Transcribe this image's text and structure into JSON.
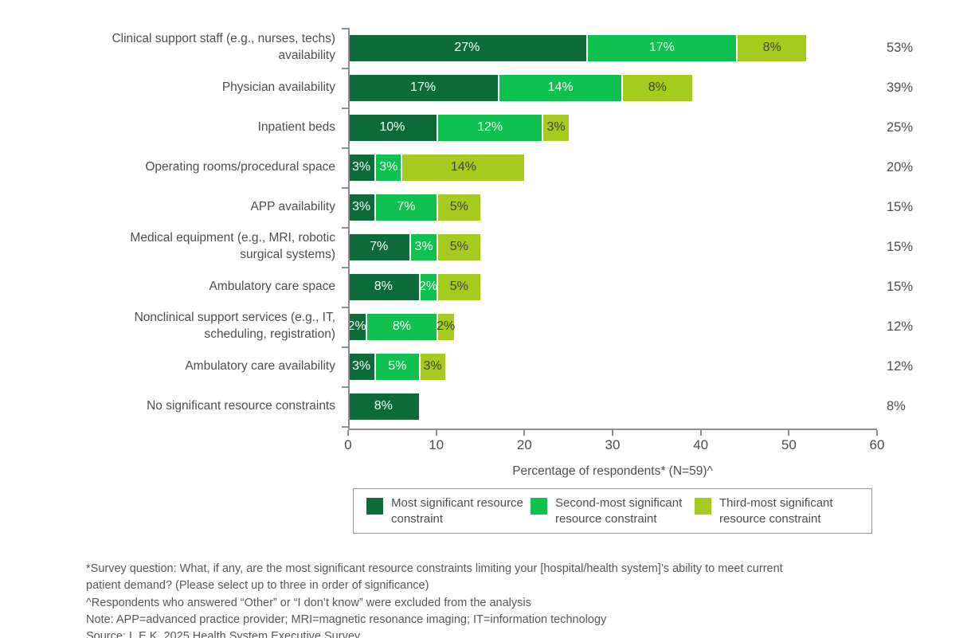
{
  "chart_data": {
    "type": "bar",
    "orientation": "horizontal",
    "stacked": true,
    "title": "",
    "categories": [
      "Clinical support staff (e.g., nurses, techs)\navailability",
      "Physician availability",
      "Inpatient beds",
      "Operating rooms/procedural space",
      "APP availability",
      "Medical equipment (e.g., MRI, robotic\nsurgical systems)",
      "Ambulatory care space",
      "Nonclinical support services (e.g., IT,\nscheduling, registration)",
      "Ambulatory care availability",
      "No significant resource constraints"
    ],
    "series": [
      {
        "name": "Most significant resource constraint",
        "color": "#0C6B39",
        "label_color": "#FFFFFF",
        "values": [
          27,
          17,
          10,
          3,
          3,
          7,
          8,
          2,
          3,
          8
        ]
      },
      {
        "name": "Second-most significant resource constraint",
        "color": "#0FC24F",
        "label_color": "#FFFFFF",
        "values": [
          17,
          14,
          12,
          3,
          7,
          3,
          2,
          8,
          5,
          0
        ]
      },
      {
        "name": "Third-most significant resource constraint",
        "color": "#A4CB1E",
        "label_color": "#3F4045",
        "values": [
          8,
          8,
          3,
          14,
          5,
          5,
          5,
          2,
          3,
          0
        ]
      }
    ],
    "totals": [
      "53%",
      "39%",
      "25%",
      "20%",
      "15%",
      "15%",
      "15%",
      "12%",
      "12%",
      "8%"
    ],
    "xlabel": "Percentage of respondents* (N=59)^",
    "xlim": [
      0,
      60
    ],
    "xticks": [
      0,
      10,
      20,
      30,
      40,
      50,
      60
    ],
    "legend_position": "bottom",
    "grid": false
  },
  "footnotes": {
    "lines": [
      "*Survey question: What, if any, are the most significant resource constraints limiting your [hospital/health system]’s ability to meet current",
      "patient demand? (Please select up to three in order of significance)",
      "^Respondents who answered “Other” or “I don’t know” were excluded from the analysis",
      "Note: APP=advanced practice provider; MRI=magnetic resonance imaging; IT=information technology",
      "Source: L.E.K. 2025 Health System Executive Survey"
    ]
  },
  "colors": {
    "axis": "#8C8D90",
    "text": "#4C4D52",
    "footnote": "#55565A",
    "background": "#FFFFFF"
  }
}
